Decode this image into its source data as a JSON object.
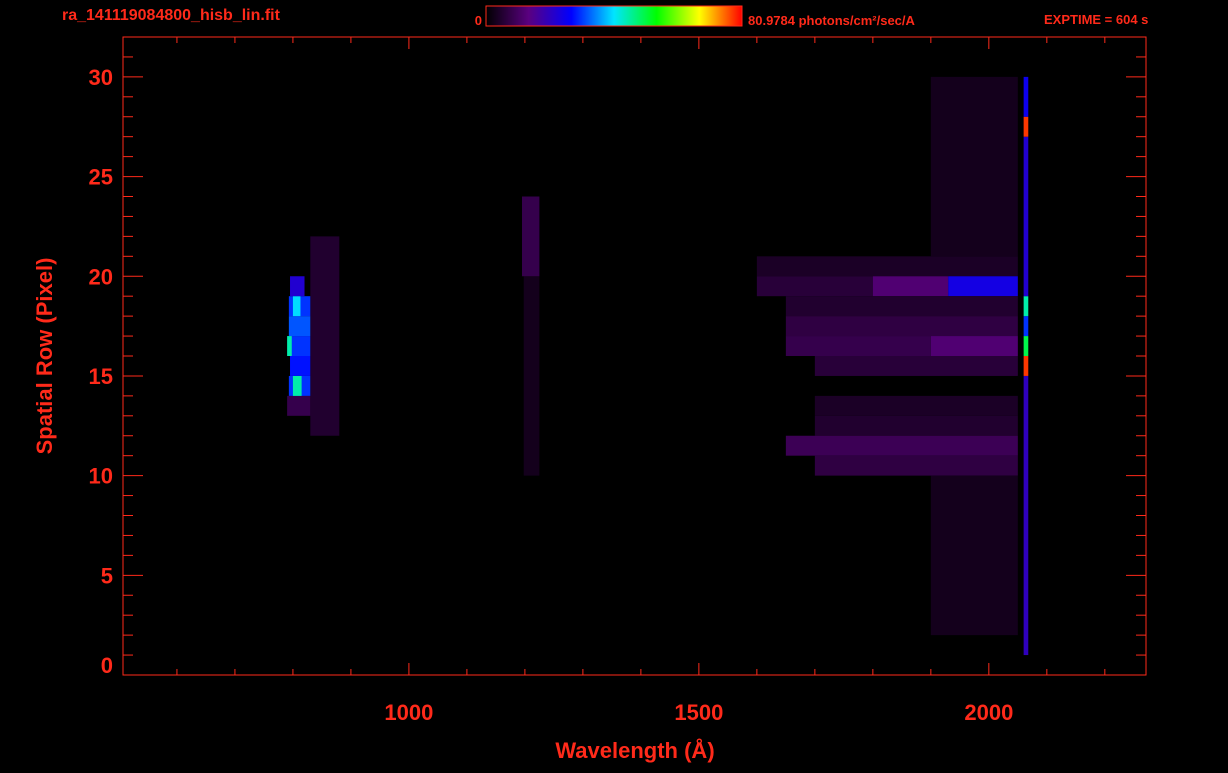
{
  "chart_data": {
    "type": "image",
    "title": "ra_141119084800_hisb_lin.fit",
    "annotation": "EXPTIME = 604 s",
    "x_label": "Wavelength (Å)",
    "y_label": "Spatial Row (Pixel)",
    "xlim": [
      507,
      2271
    ],
    "ylim": [
      0,
      32
    ],
    "xticks": [
      1000,
      1500,
      2000
    ],
    "xminorticks": [
      600,
      700,
      800,
      900,
      1100,
      1200,
      1300,
      1400,
      1600,
      1700,
      1800,
      1900,
      2100,
      2200
    ],
    "yticks": [
      0,
      5,
      10,
      15,
      20,
      25,
      30
    ],
    "yminorticks": [
      1,
      2,
      3,
      4,
      6,
      7,
      8,
      9,
      11,
      12,
      13,
      14,
      16,
      17,
      18,
      19,
      21,
      22,
      23,
      24,
      26,
      27,
      28,
      29,
      31
    ],
    "clim": [
      0,
      80.9784
    ],
    "cticks": [
      0,
      {
        "value": 80.9784,
        "label": "80.9784 photons/cm²/sec/A"
      }
    ],
    "colormap": [
      "#000000",
      "#5a0080",
      "#0000ff",
      "#00e5ff",
      "#00ff00",
      "#ffff00",
      "#ff0000"
    ],
    "axis_color": "#ff2a1a",
    "cells": [
      {
        "x": [
          830,
          880
        ],
        "y": [
          12,
          22
        ],
        "value": 5
      },
      {
        "x": [
          790,
          830
        ],
        "y": [
          13,
          14
        ],
        "value": 8
      },
      {
        "x": [
          793,
          830
        ],
        "y": [
          14,
          15
        ],
        "value": 30
      },
      {
        "x": [
          800,
          815
        ],
        "y": [
          14,
          15
        ],
        "value": 45
      },
      {
        "x": [
          795,
          830
        ],
        "y": [
          15,
          16
        ],
        "value": 28
      },
      {
        "x": [
          793,
          830
        ],
        "y": [
          16,
          17
        ],
        "value": 30
      },
      {
        "x": [
          790,
          798
        ],
        "y": [
          16,
          17
        ],
        "value": 45
      },
      {
        "x": [
          793,
          830
        ],
        "y": [
          17,
          18
        ],
        "value": 32
      },
      {
        "x": [
          793,
          830
        ],
        "y": [
          18,
          19
        ],
        "value": 30
      },
      {
        "x": [
          800,
          813
        ],
        "y": [
          18,
          19
        ],
        "value": 40
      },
      {
        "x": [
          795,
          820
        ],
        "y": [
          19,
          20
        ],
        "value": 22
      },
      {
        "x": [
          1198,
          1225
        ],
        "y": [
          10,
          20
        ],
        "value": 3
      },
      {
        "x": [
          1195,
          1225
        ],
        "y": [
          20,
          24
        ],
        "value": 8
      },
      {
        "x": [
          1600,
          2050
        ],
        "y": [
          20,
          21
        ],
        "value": 4
      },
      {
        "x": [
          1600,
          1800
        ],
        "y": [
          19,
          20
        ],
        "value": 6
      },
      {
        "x": [
          1800,
          1930
        ],
        "y": [
          19,
          20
        ],
        "value": 12
      },
      {
        "x": [
          1930,
          2050
        ],
        "y": [
          19,
          20
        ],
        "value": 24
      },
      {
        "x": [
          1650,
          2050
        ],
        "y": [
          18,
          19
        ],
        "value": 5
      },
      {
        "x": [
          1650,
          2050
        ],
        "y": [
          17,
          18
        ],
        "value": 7
      },
      {
        "x": [
          1650,
          1900
        ],
        "y": [
          16,
          17
        ],
        "value": 8
      },
      {
        "x": [
          1900,
          2050
        ],
        "y": [
          16,
          17
        ],
        "value": 12
      },
      {
        "x": [
          1700,
          2050
        ],
        "y": [
          15,
          16
        ],
        "value": 6
      },
      {
        "x": [
          1700,
          2050
        ],
        "y": [
          13,
          14
        ],
        "value": 4
      },
      {
        "x": [
          1700,
          2050
        ],
        "y": [
          12,
          13
        ],
        "value": 5
      },
      {
        "x": [
          1650,
          2050
        ],
        "y": [
          11,
          12
        ],
        "value": 9
      },
      {
        "x": [
          1700,
          2050
        ],
        "y": [
          10,
          11
        ],
        "value": 7
      },
      {
        "x": [
          1900,
          2050
        ],
        "y": [
          2,
          10
        ],
        "value": 3
      },
      {
        "x": [
          1900,
          2050
        ],
        "y": [
          21,
          30
        ],
        "value": 3
      },
      {
        "x": [
          2060,
          2068
        ],
        "y": [
          1,
          15
        ],
        "value": 20
      },
      {
        "x": [
          2060,
          2068
        ],
        "y": [
          15,
          16
        ],
        "value": 78
      },
      {
        "x": [
          2060,
          2068
        ],
        "y": [
          16,
          17
        ],
        "value": 50
      },
      {
        "x": [
          2060,
          2068
        ],
        "y": [
          17,
          18
        ],
        "value": 30
      },
      {
        "x": [
          2060,
          2068
        ],
        "y": [
          18,
          19
        ],
        "value": 45
      },
      {
        "x": [
          2060,
          2068
        ],
        "y": [
          19,
          27
        ],
        "value": 22
      },
      {
        "x": [
          2060,
          2068
        ],
        "y": [
          27,
          28
        ],
        "value": 78
      },
      {
        "x": [
          2060,
          2068
        ],
        "y": [
          28,
          30
        ],
        "value": 25
      }
    ]
  }
}
